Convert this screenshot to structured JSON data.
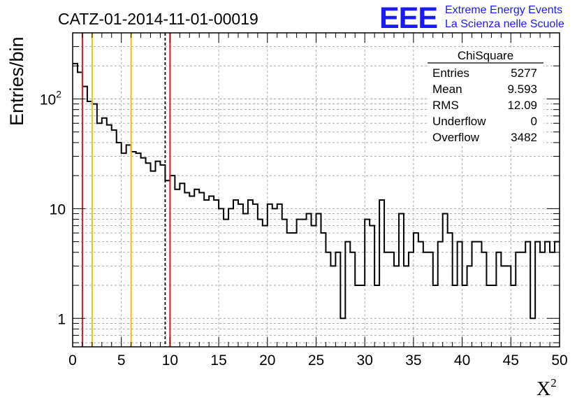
{
  "title": "CATZ-01-2014-11-01-00019",
  "logo": {
    "text": "EEE",
    "line1": "Extreme Energy Events",
    "line2": "La Scienza nelle Scuole",
    "color": "#1a1aff"
  },
  "stats": {
    "header": "ChiSquare",
    "rows": [
      {
        "label": "Entries",
        "value": "5277"
      },
      {
        "label": "Mean",
        "value": "9.593"
      },
      {
        "label": "RMS",
        "value": "12.09"
      },
      {
        "label": "Underflow",
        "value": "0"
      },
      {
        "label": "Overflow",
        "value": "3482"
      }
    ]
  },
  "chart_data": {
    "type": "bar",
    "title": "CATZ-01-2014-11-01-00019",
    "xlabel": "X",
    "xlabel_sup": "2",
    "ylabel": "Entries/bin",
    "xlim": [
      0,
      50
    ],
    "ylim": [
      0.55,
      400
    ],
    "ylog": true,
    "grid": true,
    "bin_width": 0.5,
    "x_ticks": [
      "0",
      "5",
      "10",
      "15",
      "20",
      "25",
      "30",
      "35",
      "40",
      "45",
      "50"
    ],
    "y_ticks": [
      {
        "base": "1",
        "exp": ""
      },
      {
        "base": "10",
        "exp": ""
      },
      {
        "base": "10",
        "exp": "2"
      }
    ],
    "values": [
      210,
      175,
      130,
      95,
      90,
      60,
      67,
      58,
      52,
      40,
      32,
      38,
      33,
      32,
      29,
      26,
      22,
      27,
      25,
      18,
      20,
      15,
      17,
      14,
      13,
      15,
      14,
      12,
      13,
      12,
      10,
      8,
      10,
      12,
      11,
      9,
      12,
      11,
      8,
      7,
      11,
      10,
      11,
      8,
      6,
      6,
      8,
      8,
      9,
      7,
      9,
      6,
      4,
      3,
      4,
      1,
      5,
      4,
      2,
      2,
      8,
      7,
      2,
      12,
      4,
      4,
      3,
      9,
      3,
      4,
      6,
      5,
      4,
      4,
      2,
      5,
      9,
      6,
      2,
      5,
      2,
      3,
      5,
      5,
      4,
      2,
      2,
      4,
      3,
      3,
      2,
      4,
      4,
      5,
      1,
      5,
      4,
      5,
      4,
      5
    ],
    "vlines": [
      {
        "x": 1,
        "color": "#e8161c",
        "style": "solid"
      },
      {
        "x": 2,
        "color": "#f2c300",
        "style": "solid"
      },
      {
        "x": 6,
        "color": "#f2c300",
        "style": "solid"
      },
      {
        "x": 9.5,
        "color": "#000000",
        "style": "dashed"
      },
      {
        "x": 10,
        "color": "#e8161c",
        "style": "solid"
      }
    ]
  }
}
